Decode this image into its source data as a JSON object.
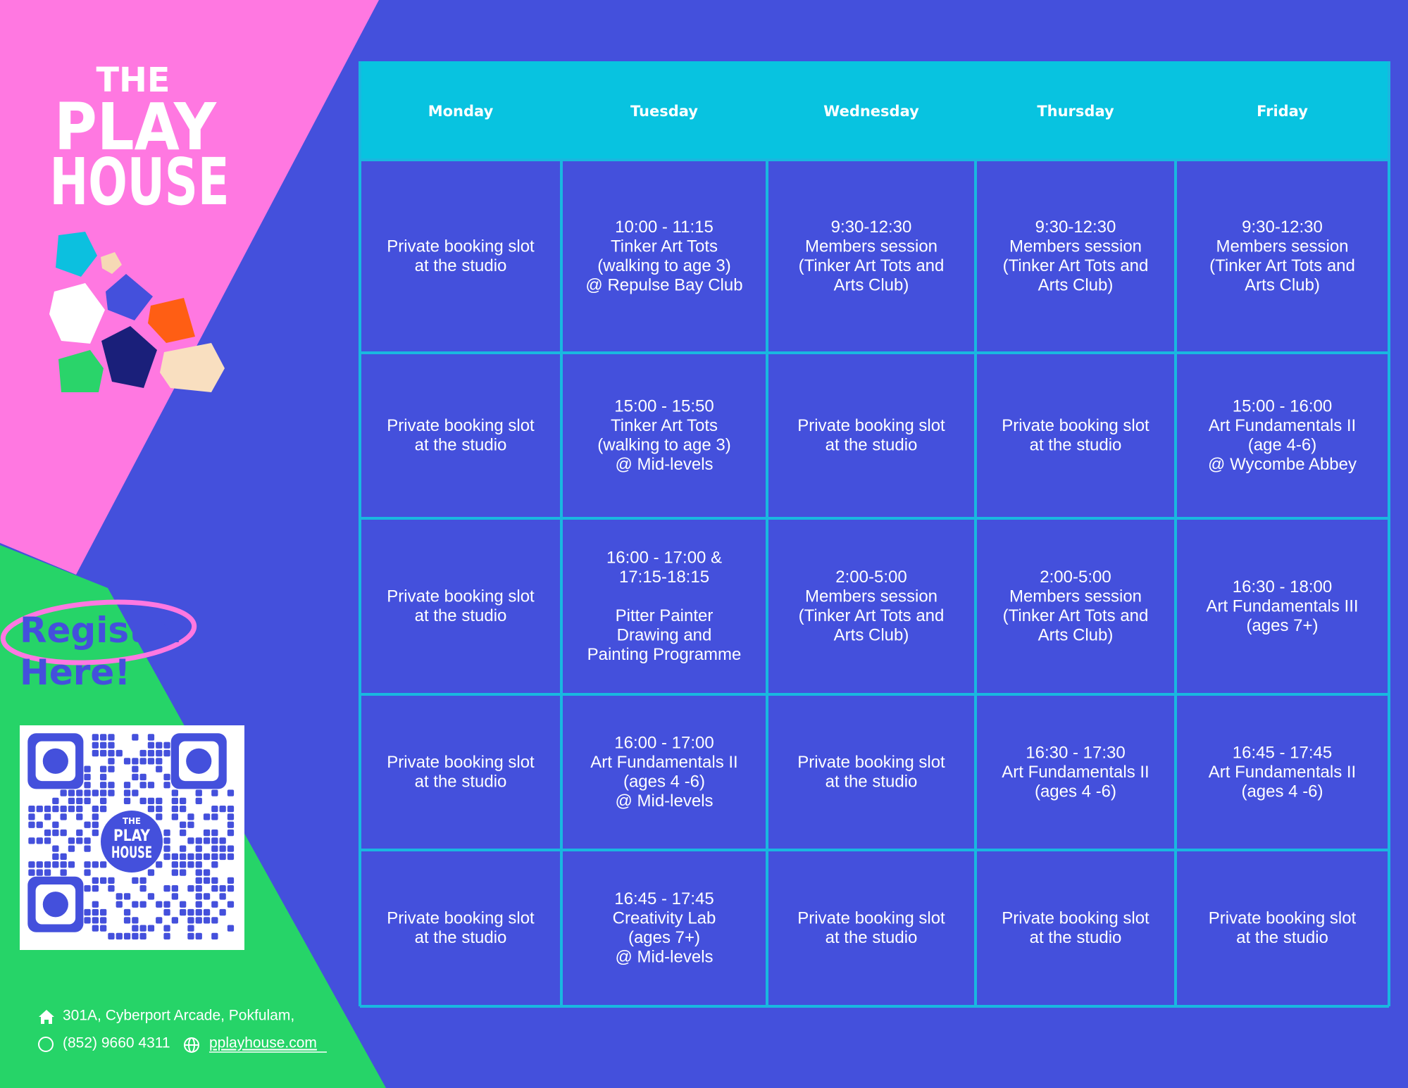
{
  "brand": {
    "logo": [
      "THE",
      "PLAY",
      "HOUSE"
    ]
  },
  "register": [
    "Register",
    "Here!"
  ],
  "contact": {
    "address": "301A, Cyberport Arcade, Pokfulam,",
    "phone": "(852) 9660 4311",
    "website": "pplayhouse.com"
  },
  "table": {
    "header": [
      "Monday",
      "Tuesday",
      "Wednesday",
      "Thursday",
      "Friday"
    ],
    "rows": [
      [
        [
          [
            "Private booking slot",
            "at the studio"
          ]
        ],
        [
          [
            "10:00 - 11:15",
            "Tinker Art Tots",
            "(walking to age 3)",
            "@ Repulse Bay Club"
          ]
        ],
        [
          [
            "9:30-12:30",
            "Members session",
            "(Tinker Art Tots and",
            "Arts Club)"
          ]
        ],
        [
          [
            "9:30-12:30",
            "Members session",
            "(Tinker Art Tots and",
            "Arts Club)"
          ]
        ],
        [
          [
            "9:30-12:30",
            "Members session",
            "(Tinker Art Tots and",
            "Arts Club)"
          ]
        ]
      ],
      [
        [
          [
            "Private booking slot",
            "at the studio"
          ]
        ],
        [
          [
            "15:00 - 15:50",
            "Tinker Art Tots",
            "(walking to age 3)",
            "@ Mid-levels"
          ]
        ],
        [
          [
            "Private booking slot",
            "at the studio"
          ]
        ],
        [
          [
            "Private booking slot",
            "at the studio"
          ]
        ],
        [
          [
            "15:00 - 16:00",
            "Art Fundamentals II",
            "(age 4-6)",
            "@ Wycombe Abbey"
          ]
        ]
      ],
      [
        [
          [
            "Private booking slot",
            "at the studio"
          ]
        ],
        [
          [
            "16:00 - 17:00 &",
            "17:15-18:15"
          ],
          [
            "Pitter Painter",
            "Drawing and",
            "Painting Programme"
          ]
        ],
        [
          [
            "2:00-5:00",
            "Members session",
            "(Tinker Art Tots and",
            "Arts Club)"
          ]
        ],
        [
          [
            "2:00-5:00",
            "Members session",
            "(Tinker Art Tots and",
            "Arts Club)"
          ]
        ],
        [
          [
            "16:30 - 18:00",
            "Art Fundamentals III",
            "(ages 7+)"
          ]
        ]
      ],
      [
        [
          [
            "Private booking slot",
            "at the studio"
          ]
        ],
        [
          [
            "16:00 - 17:00",
            "Art Fundamentals II",
            "(ages 4 -6)",
            "@ Mid-levels"
          ]
        ],
        [
          [
            "Private booking slot",
            "at the studio"
          ]
        ],
        [
          [
            "16:30 - 17:30",
            "Art Fundamentals II",
            "(ages 4 -6)"
          ]
        ],
        [
          [
            "16:45 - 17:45",
            "Art Fundamentals II",
            "(ages 4 -6)"
          ]
        ]
      ],
      [
        [
          [
            "Private booking slot",
            "at the studio"
          ]
        ],
        [
          [
            "16:45 - 17:45",
            "Creativity Lab",
            "(ages 7+)",
            "@ Mid-levels"
          ]
        ],
        [
          [
            "Private booking slot",
            "at the studio"
          ]
        ],
        [
          [
            "Private booking slot",
            "at the studio"
          ]
        ],
        [
          [
            "Private booking slot",
            "at the studio"
          ]
        ]
      ]
    ]
  }
}
